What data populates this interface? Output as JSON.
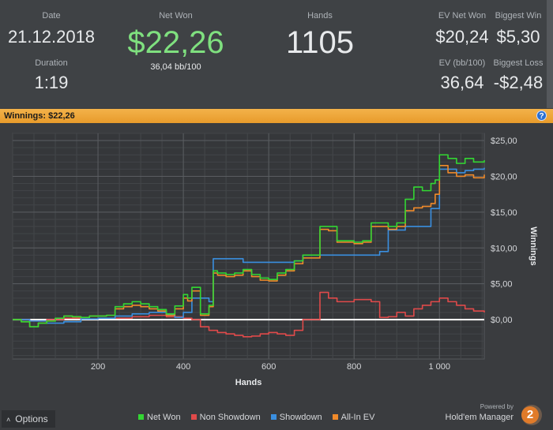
{
  "stats": {
    "date_label": "Date",
    "date_value": "21.12.2018",
    "duration_label": "Duration",
    "duration_value": "1:19",
    "net_won_label": "Net Won",
    "net_won_value": "$22,26",
    "bb100_value": "36,04 bb/100",
    "hands_label": "Hands",
    "hands_value": "1105",
    "ev_net_won_label": "EV Net Won",
    "ev_net_won_value": "$20,24",
    "biggest_win_label": "Biggest Win",
    "biggest_win_value": "$5,30",
    "ev_bb100_label": "EV (bb/100)",
    "ev_bb100_value": "36,64",
    "biggest_loss_label": "Biggest Loss",
    "biggest_loss_value": "-$2,48"
  },
  "banner": {
    "text": "Winnings:  $22,26",
    "help_icon": "help-icon"
  },
  "colors": {
    "net_won": "#33d633",
    "non_showdown": "#e04a4a",
    "showdown": "#3a8fe0",
    "allin_ev": "#f08a2a",
    "net_won_text": "#7fe07f",
    "banner": "#f0a83a"
  },
  "options_label": "Options",
  "brand": {
    "powered": "Powered by",
    "name": "Hold'em Manager",
    "logo_text": "2"
  },
  "chart_data": {
    "type": "line",
    "xlabel": "Hands",
    "ylabel": "Winnings",
    "xlim": [
      0,
      1105
    ],
    "ylim": [
      -5.5,
      26
    ],
    "xticks": [
      200,
      400,
      600,
      800,
      1000
    ],
    "xtick_labels": [
      "200",
      "400",
      "600",
      "800",
      "1 000"
    ],
    "yticks": [
      0,
      5,
      10,
      15,
      20,
      25
    ],
    "ytick_labels": [
      "$0,00",
      "$5,00",
      "$10,00",
      "$15,00",
      "$20,00",
      "$25,00"
    ],
    "grid": true,
    "legend_position": "bottom",
    "series": [
      {
        "name": "Net Won",
        "color": "#33d633",
        "x": [
          0,
          20,
          40,
          60,
          80,
          100,
          120,
          140,
          160,
          180,
          200,
          220,
          240,
          260,
          280,
          300,
          320,
          340,
          360,
          380,
          400,
          410,
          420,
          440,
          460,
          470,
          480,
          500,
          520,
          540,
          560,
          580,
          600,
          620,
          640,
          660,
          680,
          700,
          720,
          740,
          760,
          780,
          800,
          820,
          840,
          860,
          880,
          900,
          920,
          940,
          960,
          980,
          990,
          1000,
          1020,
          1040,
          1060,
          1080,
          1105
        ],
        "y": [
          0,
          -0.3,
          -1.0,
          -0.5,
          -0.2,
          0.2,
          0.5,
          0.4,
          0.3,
          0.5,
          0.5,
          0.6,
          1.8,
          2.2,
          2.5,
          2.2,
          1.8,
          1.4,
          0.8,
          1.9,
          3.5,
          3.0,
          4.5,
          0.8,
          2.0,
          6.8,
          6.5,
          6.3,
          6.5,
          7.0,
          6.3,
          5.8,
          5.6,
          6.5,
          7.0,
          8.2,
          9.0,
          9.0,
          13.0,
          13.0,
          11.0,
          11.0,
          10.8,
          11.0,
          13.5,
          13.5,
          13.0,
          13.5,
          16.8,
          18.5,
          18.0,
          19.0,
          19.5,
          23.0,
          22.5,
          21.8,
          22.5,
          22.0,
          22.26
        ]
      },
      {
        "name": "Non Showdown",
        "color": "#e04a4a",
        "x": [
          0,
          40,
          80,
          120,
          160,
          200,
          240,
          280,
          320,
          360,
          400,
          420,
          440,
          460,
          480,
          500,
          520,
          540,
          560,
          580,
          600,
          620,
          640,
          660,
          680,
          700,
          720,
          740,
          760,
          800,
          840,
          860,
          880,
          900,
          920,
          940,
          960,
          980,
          1000,
          1020,
          1040,
          1060,
          1080,
          1105
        ],
        "y": [
          0,
          -0.2,
          0,
          0.2,
          0.1,
          0.2,
          0.2,
          0.4,
          0.6,
          0.4,
          0.2,
          0,
          -1.0,
          -1.5,
          -1.8,
          -2.0,
          -2.2,
          -2.4,
          -2.3,
          -2.0,
          -1.8,
          -2.0,
          -2.2,
          -1.5,
          0,
          0,
          3.8,
          3.0,
          2.5,
          2.8,
          2.5,
          0.3,
          0.4,
          1.0,
          0.5,
          1.5,
          2.0,
          2.5,
          3.0,
          2.5,
          2.0,
          1.5,
          1.2,
          1.0
        ]
      },
      {
        "name": "Showdown",
        "color": "#3a8fe0",
        "x": [
          0,
          40,
          80,
          120,
          160,
          200,
          240,
          280,
          320,
          360,
          380,
          400,
          420,
          440,
          460,
          470,
          480,
          500,
          540,
          560,
          580,
          600,
          640,
          660,
          680,
          700,
          720,
          740,
          760,
          800,
          840,
          860,
          880,
          900,
          920,
          940,
          960,
          980,
          1000,
          1020,
          1040,
          1060,
          1080,
          1105
        ],
        "y": [
          0,
          -0.2,
          -0.5,
          -0.3,
          0.1,
          0.2,
          0.5,
          0.8,
          1.0,
          0.7,
          0.3,
          1.0,
          3.0,
          3.0,
          2.5,
          8.5,
          8.5,
          8.5,
          8.0,
          8.0,
          8.0,
          8.0,
          8.0,
          8.2,
          9.0,
          9.0,
          9.0,
          9.0,
          9.0,
          9.0,
          9.0,
          9.5,
          12.5,
          12.5,
          13.0,
          13.0,
          13.0,
          15.5,
          21.0,
          21.0,
          20.5,
          20.8,
          21.0,
          21.2
        ]
      },
      {
        "name": "All-In EV",
        "color": "#f08a2a",
        "x": [
          0,
          20,
          40,
          60,
          80,
          100,
          120,
          140,
          160,
          180,
          200,
          220,
          240,
          260,
          280,
          300,
          320,
          340,
          360,
          380,
          400,
          410,
          420,
          440,
          460,
          470,
          480,
          500,
          520,
          540,
          560,
          580,
          600,
          620,
          640,
          660,
          680,
          700,
          720,
          740,
          760,
          780,
          800,
          820,
          840,
          860,
          880,
          900,
          920,
          940,
          960,
          980,
          990,
          1000,
          1020,
          1040,
          1060,
          1080,
          1105
        ],
        "y": [
          0,
          -0.3,
          -1.0,
          -0.5,
          -0.2,
          0.2,
          0.5,
          0.4,
          0.3,
          0.5,
          0.5,
          0.6,
          1.5,
          1.8,
          2.0,
          1.8,
          1.5,
          1.2,
          0.6,
          1.5,
          3.0,
          2.6,
          4.0,
          0.6,
          1.8,
          6.5,
          6.2,
          6.0,
          6.2,
          6.8,
          6.0,
          5.5,
          5.4,
          6.2,
          6.8,
          7.8,
          8.6,
          8.6,
          12.6,
          12.4,
          10.8,
          10.8,
          10.6,
          10.8,
          13.0,
          13.0,
          12.6,
          13.0,
          15.2,
          15.6,
          15.8,
          16.2,
          17.5,
          21.5,
          20.5,
          20.0,
          20.2,
          19.8,
          20.24
        ]
      }
    ]
  }
}
